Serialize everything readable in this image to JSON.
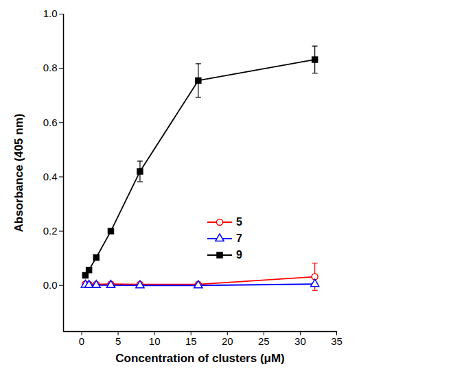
{
  "chart_data": {
    "type": "line",
    "x_label": "Concentration of clusters (μM)",
    "y_label": "Absorbance (405 nm)",
    "x": [
      0.5,
      1,
      2,
      4,
      8,
      16,
      32
    ],
    "series": [
      {
        "name": "5",
        "color": "#ff0000",
        "marker": "open_circle",
        "values": [
          0.005,
          0.004,
          0.004,
          0.005,
          0.004,
          0.004,
          0.032
        ],
        "errors": [
          0.003,
          0.003,
          0.003,
          0.003,
          0.003,
          0.003,
          0.05
        ]
      },
      {
        "name": "7",
        "color": "#0000ff",
        "marker": "open_triangle",
        "values": [
          0.002,
          0.001,
          0.001,
          0.001,
          0.0,
          0.0,
          0.005
        ],
        "errors": [
          0.002,
          0.002,
          0.002,
          0.002,
          0.002,
          0.002,
          0.003
        ]
      },
      {
        "name": "9",
        "color": "#000000",
        "marker": "filled_square",
        "values": [
          0.037,
          0.057,
          0.103,
          0.2,
          0.42,
          0.755,
          0.832
        ],
        "errors": [
          0.004,
          0.004,
          0.005,
          0.006,
          0.038,
          0.062,
          0.05
        ]
      }
    ],
    "xlim": [
      -2.5,
      35
    ],
    "xticks": [
      0,
      5,
      10,
      15,
      20,
      25,
      30,
      35
    ],
    "ylim": [
      -0.17,
      1.0
    ],
    "yticks": [
      {
        "value": 0,
        "label": "0.0"
      },
      0.2,
      0.4,
      0.6,
      0.8,
      {
        "value": 1,
        "label": "1.0"
      }
    ],
    "legend": "right",
    "grid": false
  }
}
